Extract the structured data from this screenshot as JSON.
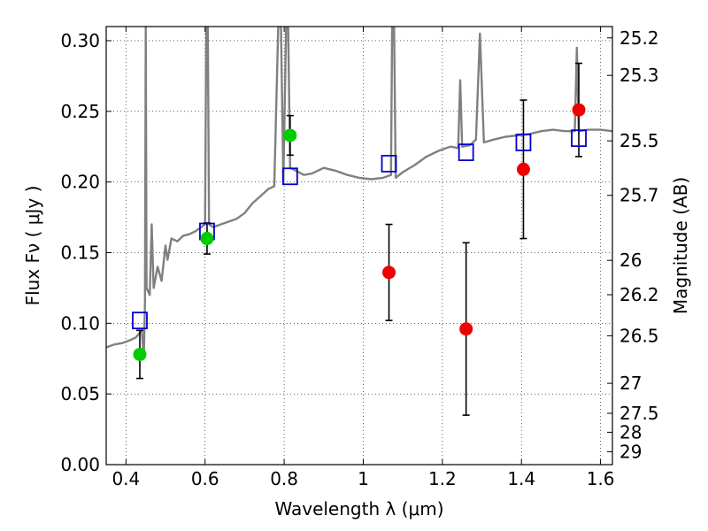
{
  "chart_data": {
    "type": "scatter",
    "xlabel": "Wavelength  λ (μm)",
    "ylabel": "Flux  Fν  ( μJy )",
    "y2label": "Magnitude (AB)",
    "xlim": [
      0.35,
      1.63
    ],
    "ylim": [
      0.0,
      0.31
    ],
    "grid": true,
    "x_ticks": [
      {
        "value": 0.4,
        "label": "0.4"
      },
      {
        "value": 0.6,
        "label": "0.6"
      },
      {
        "value": 0.8,
        "label": "0.8"
      },
      {
        "value": 1.0,
        "label": "1"
      },
      {
        "value": 1.2,
        "label": "1.2"
      },
      {
        "value": 1.4,
        "label": "1.4"
      },
      {
        "value": 1.6,
        "label": "1.6"
      }
    ],
    "y_ticks": [
      {
        "value": 0.0,
        "label": "0.00"
      },
      {
        "value": 0.05,
        "label": "0.05"
      },
      {
        "value": 0.1,
        "label": "0.10"
      },
      {
        "value": 0.15,
        "label": "0.15"
      },
      {
        "value": 0.2,
        "label": "0.20"
      },
      {
        "value": 0.25,
        "label": "0.25"
      },
      {
        "value": 0.3,
        "label": "0.30"
      }
    ],
    "mag_ticks": [
      {
        "mag": 25.2,
        "label": "25.2"
      },
      {
        "mag": 25.3,
        "label": "25.3"
      },
      {
        "mag": 25.5,
        "label": "25.5"
      },
      {
        "mag": 25.7,
        "label": "25.7"
      },
      {
        "mag": 26,
        "label": "26"
      },
      {
        "mag": 26.2,
        "label": "26.2"
      },
      {
        "mag": 26.5,
        "label": "26.5"
      },
      {
        "mag": 27,
        "label": "27"
      },
      {
        "mag": 27.5,
        "label": "27.5"
      },
      {
        "mag": 28,
        "label": "28"
      },
      {
        "mag": 29,
        "label": "29"
      }
    ],
    "model_spectrum": {
      "color": "#808080",
      "points": [
        [
          0.35,
          0.083
        ],
        [
          0.37,
          0.085
        ],
        [
          0.39,
          0.086
        ],
        [
          0.41,
          0.088
        ],
        [
          0.425,
          0.09
        ],
        [
          0.44,
          0.095
        ],
        [
          0.445,
          0.075
        ],
        [
          0.448,
          0.115
        ],
        [
          0.45,
          0.31
        ],
        [
          0.452,
          0.125
        ],
        [
          0.46,
          0.12
        ],
        [
          0.465,
          0.17
        ],
        [
          0.47,
          0.125
        ],
        [
          0.48,
          0.14
        ],
        [
          0.49,
          0.13
        ],
        [
          0.5,
          0.155
        ],
        [
          0.505,
          0.145
        ],
        [
          0.515,
          0.16
        ],
        [
          0.53,
          0.158
        ],
        [
          0.545,
          0.162
        ],
        [
          0.56,
          0.163
        ],
        [
          0.575,
          0.165
        ],
        [
          0.59,
          0.168
        ],
        [
          0.6,
          0.17
        ],
        [
          0.603,
          0.31
        ],
        [
          0.607,
          0.31
        ],
        [
          0.61,
          0.17
        ],
        [
          0.62,
          0.168
        ],
        [
          0.64,
          0.17
        ],
        [
          0.66,
          0.172
        ],
        [
          0.68,
          0.174
        ],
        [
          0.7,
          0.178
        ],
        [
          0.72,
          0.185
        ],
        [
          0.74,
          0.19
        ],
        [
          0.76,
          0.195
        ],
        [
          0.775,
          0.197
        ],
        [
          0.785,
          0.31
        ],
        [
          0.792,
          0.31
        ],
        [
          0.798,
          0.2
        ],
        [
          0.805,
          0.31
        ],
        [
          0.81,
          0.31
        ],
        [
          0.815,
          0.21
        ],
        [
          0.83,
          0.208
        ],
        [
          0.85,
          0.205
        ],
        [
          0.87,
          0.206
        ],
        [
          0.9,
          0.21
        ],
        [
          0.93,
          0.208
        ],
        [
          0.96,
          0.205
        ],
        [
          0.99,
          0.203
        ],
        [
          1.02,
          0.202
        ],
        [
          1.05,
          0.203
        ],
        [
          1.07,
          0.205
        ],
        [
          1.073,
          0.31
        ],
        [
          1.078,
          0.31
        ],
        [
          1.082,
          0.203
        ],
        [
          1.1,
          0.207
        ],
        [
          1.13,
          0.212
        ],
        [
          1.16,
          0.218
        ],
        [
          1.19,
          0.222
        ],
        [
          1.22,
          0.225
        ],
        [
          1.24,
          0.224
        ],
        [
          1.245,
          0.272
        ],
        [
          1.25,
          0.225
        ],
        [
          1.27,
          0.226
        ],
        [
          1.285,
          0.23
        ],
        [
          1.295,
          0.305
        ],
        [
          1.305,
          0.228
        ],
        [
          1.33,
          0.23
        ],
        [
          1.36,
          0.232
        ],
        [
          1.39,
          0.233
        ],
        [
          1.42,
          0.234
        ],
        [
          1.45,
          0.236
        ],
        [
          1.48,
          0.237
        ],
        [
          1.51,
          0.236
        ],
        [
          1.535,
          0.236
        ],
        [
          1.54,
          0.295
        ],
        [
          1.545,
          0.236
        ],
        [
          1.57,
          0.237
        ],
        [
          1.6,
          0.237
        ],
        [
          1.63,
          0.236
        ]
      ]
    },
    "model_photometry": {
      "color": "#0000cc",
      "points": [
        {
          "x": 0.435,
          "y": 0.102
        },
        {
          "x": 0.605,
          "y": 0.165
        },
        {
          "x": 0.815,
          "y": 0.204
        },
        {
          "x": 1.065,
          "y": 0.213
        },
        {
          "x": 1.26,
          "y": 0.221
        },
        {
          "x": 1.405,
          "y": 0.228
        },
        {
          "x": 1.545,
          "y": 0.231
        }
      ]
    },
    "detections": {
      "color": "#00cc00",
      "points": [
        {
          "x": 0.435,
          "y": 0.078,
          "err": 0.017
        },
        {
          "x": 0.605,
          "y": 0.16,
          "err": 0.011
        },
        {
          "x": 0.815,
          "y": 0.233,
          "err": 0.014
        }
      ]
    },
    "non_detections": {
      "color": "#ee0000",
      "points": [
        {
          "x": 1.065,
          "y": 0.136,
          "err": 0.034
        },
        {
          "x": 1.26,
          "y": 0.096,
          "err": 0.061
        },
        {
          "x": 1.405,
          "y": 0.209,
          "err": 0.049
        },
        {
          "x": 1.545,
          "y": 0.251,
          "err": 0.033
        }
      ]
    }
  }
}
